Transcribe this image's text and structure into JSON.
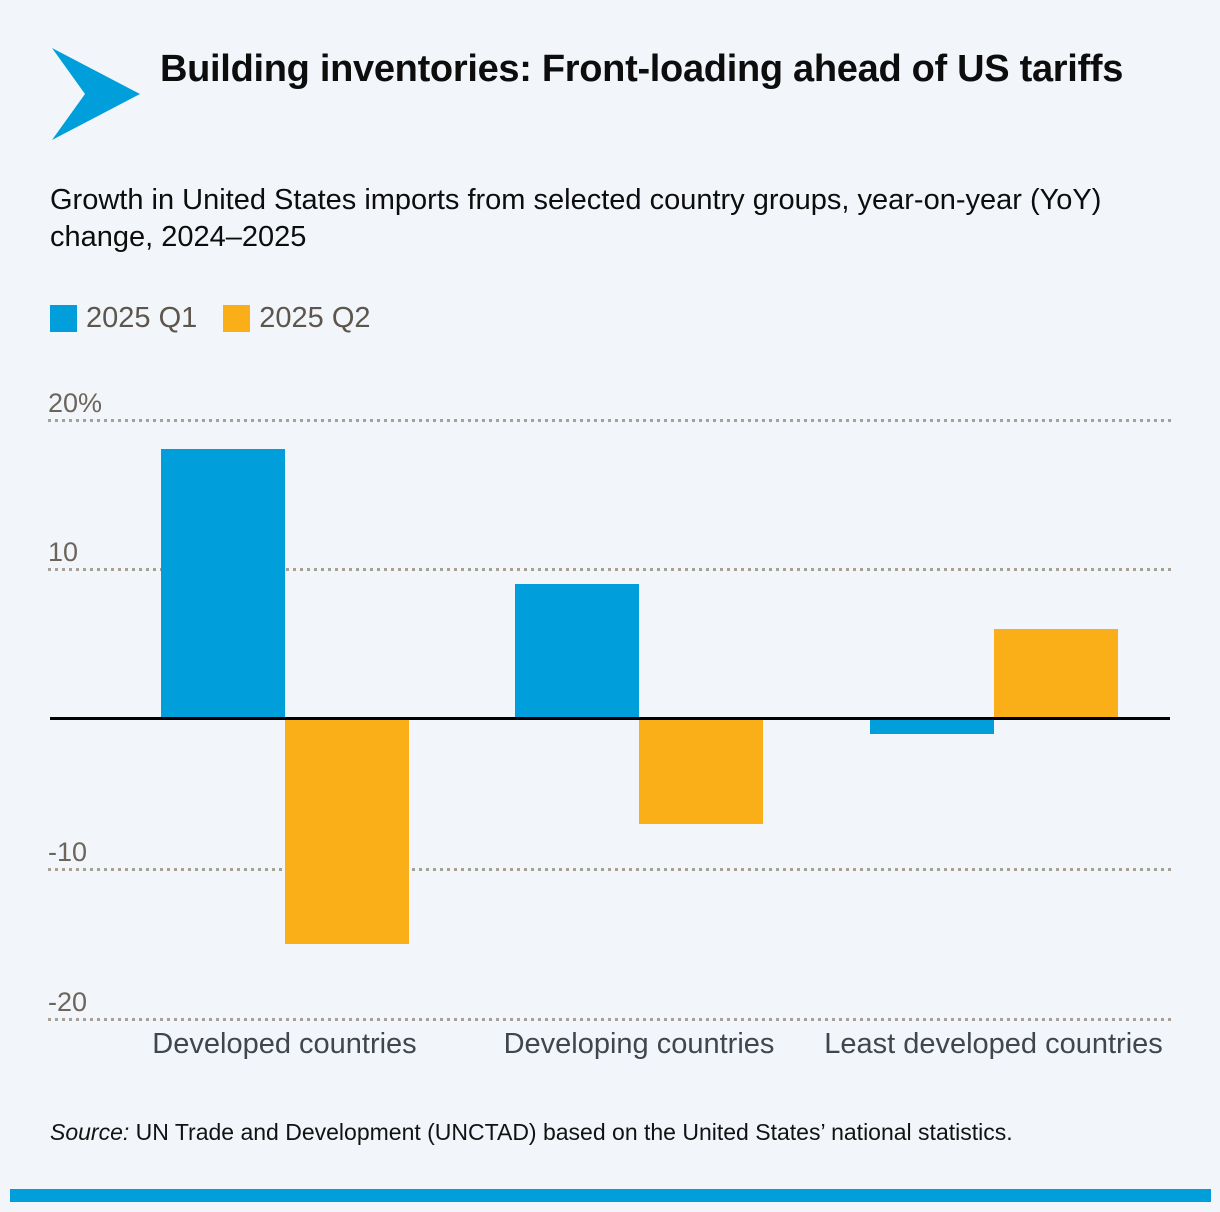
{
  "header": {
    "title": "Building inventories: Front-loading ahead of US tariffs",
    "subtitle": "Growth in United States imports from selected country groups, year-on-year (YoY) change, 2024–2025"
  },
  "legend": {
    "items": [
      {
        "label": "2025 Q1",
        "color": "#009edb"
      },
      {
        "label": "2025 Q2",
        "color": "#faae17"
      }
    ]
  },
  "chart_data": {
    "type": "bar",
    "categories": [
      "Developed countries",
      "Developing countries",
      "Least developed countries"
    ],
    "series": [
      {
        "name": "2025 Q1",
        "color": "#009edb",
        "values": [
          18,
          9,
          -1
        ]
      },
      {
        "name": "2025 Q2",
        "color": "#faae17",
        "values": [
          -15,
          -7,
          6
        ]
      }
    ],
    "title": "Building inventories: Front-loading ahead of US tariffs",
    "xlabel": "",
    "ylabel": "",
    "ylim": [
      -22,
      20
    ],
    "yticks": [
      {
        "value": 20,
        "label": "20%"
      },
      {
        "value": 10,
        "label": "10"
      },
      {
        "value": -10,
        "label": "-10"
      },
      {
        "value": -20,
        "label": "-20"
      }
    ],
    "baseline": 0,
    "grid": "horizontal-dotted",
    "legend_position": "top-left"
  },
  "footer": {
    "source_label": "Source:",
    "source_text": "UN Trade and Development (UNCTAD) based on the United States’ national statistics."
  },
  "colors": {
    "background": "#f2f6fa",
    "accent_blue": "#009edb",
    "accent_orange": "#faae17",
    "axis_line": "#000000",
    "grid_dots": "#a89f95",
    "tick_label": "#6d655c",
    "category_label": "#3f464d",
    "legend_label": "#5d564d",
    "bottom_bar": "#009edb"
  }
}
